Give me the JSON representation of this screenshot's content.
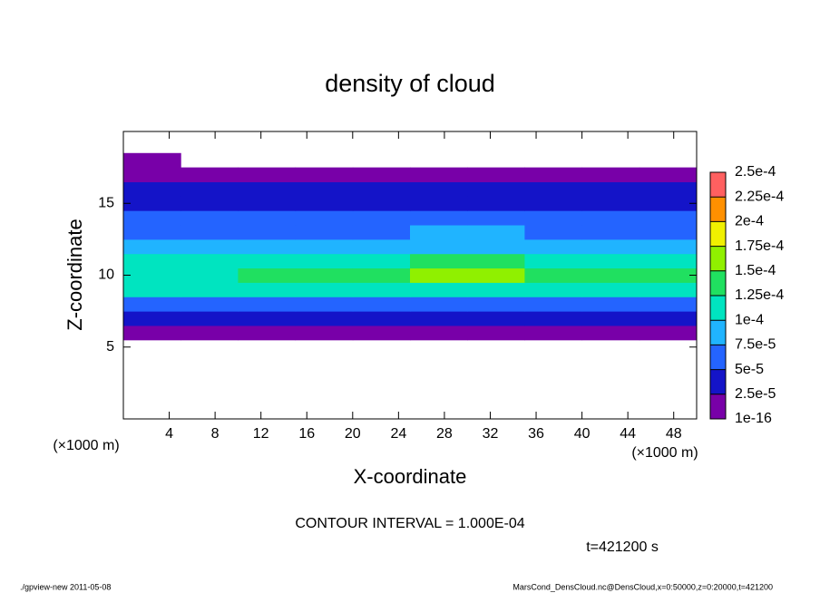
{
  "chart_data": {
    "type": "heatmap",
    "title": "density of cloud",
    "x_label": "X-coordinate",
    "y_label": "Z-coordinate",
    "x_unit_label": "(×1000 m)",
    "y_unit_label": "(×1000 m)",
    "note": "CONTOUR INTERVAL = 1.000E-04",
    "time_label": "t=421200 s",
    "footer_left": "./gpview-new  2011-05-08",
    "footer_right": "MarsCond_DensCloud.nc@DensCloud,x=0:50000,z=0:20000,t=421200",
    "xlim": [
      0,
      50
    ],
    "ylim": [
      0,
      20
    ],
    "xticks": [
      4,
      8,
      12,
      16,
      20,
      24,
      28,
      32,
      36,
      40,
      44,
      48
    ],
    "yticks": [
      5,
      10,
      15
    ],
    "x": [
      2.5,
      7.5,
      12.5,
      17.5,
      22.5,
      27.5,
      32.5,
      37.5,
      42.5,
      47.5
    ],
    "y": [
      6,
      7,
      8,
      9,
      10,
      11,
      12,
      13,
      14,
      15,
      16,
      17,
      18
    ],
    "values": [
      [
        1.5e-05,
        1.5e-05,
        1.5e-05,
        1.5e-05,
        1.5e-05,
        1.5e-05,
        1.5e-05,
        1.5e-05,
        1.5e-05,
        1.5e-05
      ],
      [
        3e-05,
        3e-05,
        3e-05,
        3e-05,
        3e-05,
        3e-05,
        3e-05,
        3e-05,
        3e-05,
        3e-05
      ],
      [
        6e-05,
        6e-05,
        6e-05,
        6.5e-05,
        6.5e-05,
        6.5e-05,
        6.5e-05,
        6e-05,
        6e-05,
        6e-05
      ],
      [
        0.000105,
        0.000105,
        0.000105,
        0.00011,
        0.00011,
        0.000115,
        0.00011,
        0.000105,
        0.000105,
        0.000105
      ],
      [
        0.00012,
        0.00012,
        0.000125,
        0.00013,
        0.000135,
        0.000155,
        0.00015,
        0.00014,
        0.00013,
        0.000125
      ],
      [
        0.0001,
        0.0001,
        0.000105,
        0.00011,
        0.000115,
        0.00013,
        0.00013,
        0.00012,
        0.00011,
        0.000105
      ],
      [
        8e-05,
        8e-05,
        8e-05,
        8.5e-05,
        8.5e-05,
        9e-05,
        9e-05,
        8.5e-05,
        8e-05,
        8e-05
      ],
      [
        7e-05,
        7e-05,
        7e-05,
        7e-05,
        7e-05,
        7.5e-05,
        7.5e-05,
        7e-05,
        7e-05,
        7e-05
      ],
      [
        6e-05,
        6e-05,
        6e-05,
        6e-05,
        6e-05,
        6e-05,
        6e-05,
        6e-05,
        6e-05,
        6e-05
      ],
      [
        4.5e-05,
        4.5e-05,
        4.5e-05,
        4.5e-05,
        4.5e-05,
        4.5e-05,
        4.5e-05,
        4.5e-05,
        4.5e-05,
        4.5e-05
      ],
      [
        3e-05,
        3e-05,
        3e-05,
        3e-05,
        3e-05,
        3e-05,
        3e-05,
        3e-05,
        3e-05,
        3e-05
      ],
      [
        1.5e-05,
        1.5e-05,
        1.5e-05,
        1.5e-05,
        1.5e-05,
        1.5e-05,
        1.5e-05,
        1.5e-05,
        1.5e-05,
        1.5e-05
      ],
      [
        1e-05,
        null,
        null,
        null,
        null,
        null,
        null,
        null,
        null,
        null
      ]
    ],
    "colorbar": {
      "levels": [
        {
          "value": 1e-16,
          "label": "1e-16"
        },
        {
          "value": 2.5e-05,
          "label": "2.5e-5"
        },
        {
          "value": 5e-05,
          "label": "5e-5"
        },
        {
          "value": 7.5e-05,
          "label": "7.5e-5"
        },
        {
          "value": 0.0001,
          "label": "1e-4"
        },
        {
          "value": 0.000125,
          "label": "1.25e-4"
        },
        {
          "value": 0.00015,
          "label": "1.5e-4"
        },
        {
          "value": 0.000175,
          "label": "1.75e-4"
        },
        {
          "value": 0.0002,
          "label": "2e-4"
        },
        {
          "value": 0.000225,
          "label": "2.25e-4"
        },
        {
          "value": 0.00025,
          "label": "2.5e-4"
        }
      ],
      "colors": [
        "#7800a8",
        "#1414c8",
        "#2464ff",
        "#20b4ff",
        "#00e4c0",
        "#20e060",
        "#90f000",
        "#f0f000",
        "#ff9000",
        "#ff6060"
      ]
    }
  }
}
